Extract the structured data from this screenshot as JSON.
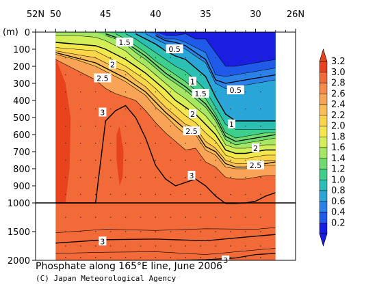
{
  "chart_data": {
    "type": "contour",
    "title": "Phosphate along 165°E line, June 2006",
    "credit": "(C) Japan Meteorological Agency",
    "y_unit_label": "(m)",
    "x_top_ticks": [
      "52N",
      "50",
      "45",
      "40",
      "35",
      "30",
      "26N"
    ],
    "x_top_values": [
      52,
      50,
      45,
      40,
      35,
      30,
      26
    ],
    "y_ticks_upper": [
      "0",
      "100",
      "200",
      "300",
      "400",
      "500",
      "600",
      "700",
      "800",
      "900",
      "1000"
    ],
    "y_ticks_lower": [
      "1500",
      "2000"
    ],
    "ylim": [
      0,
      2000
    ],
    "xlim_lat": [
      52,
      26
    ],
    "data_range_lat": [
      50,
      28
    ],
    "colorbar_levels": [
      "3.2",
      "3.0",
      "2.8",
      "2.6",
      "2.4",
      "2.2",
      "2.0",
      "1.8",
      "1.6",
      "1.4",
      "1.2",
      "1.0",
      "0.8",
      "0.6",
      "0.4",
      "0.2"
    ],
    "colorbar_values": [
      3.2,
      3.0,
      2.8,
      2.6,
      2.4,
      2.2,
      2.0,
      1.8,
      1.6,
      1.4,
      1.2,
      1.0,
      0.8,
      0.6,
      0.4,
      0.2
    ],
    "colorbar_colors": [
      "#e8431c",
      "#f16a38",
      "#f58a4a",
      "#f8a356",
      "#fbbd55",
      "#fbd54a",
      "#f3e84b",
      "#d3ee56",
      "#a5e662",
      "#6fdb6f",
      "#3ecf8c",
      "#2cc0b4",
      "#2aa5d8",
      "#2a82e8",
      "#1f5ae8",
      "#1a1ee0"
    ],
    "contour_labels": [
      {
        "value": "1.5",
        "lat": 43.1,
        "depth": 60
      },
      {
        "value": "0.5",
        "lat": 38.1,
        "depth": 100
      },
      {
        "value": "2",
        "lat": 44.3,
        "depth": 190
      },
      {
        "value": "2.5",
        "lat": 45.3,
        "depth": 270
      },
      {
        "value": "1",
        "lat": 36.3,
        "depth": 290
      },
      {
        "value": "1.5",
        "lat": 35.5,
        "depth": 360
      },
      {
        "value": "0.5",
        "lat": 32.0,
        "depth": 340
      },
      {
        "value": "3",
        "lat": 45.3,
        "depth": 470
      },
      {
        "value": "2",
        "lat": 36.3,
        "depth": 480
      },
      {
        "value": "1",
        "lat": 32.4,
        "depth": 540
      },
      {
        "value": "2.5",
        "lat": 36.4,
        "depth": 580
      },
      {
        "value": "2",
        "lat": 30.0,
        "depth": 680
      },
      {
        "value": "2.5",
        "lat": 30.0,
        "depth": 780
      },
      {
        "value": "3",
        "lat": 36.4,
        "depth": 840
      },
      {
        "value": "3",
        "lat": 45.3,
        "depth": 1670
      },
      {
        "value": "3",
        "lat": 33.0,
        "depth": 2000
      }
    ],
    "colors": {
      "deep_orange": "#f35b2b",
      "mid_orange": "#f16a38",
      "surface_blue": "#1a1ee0"
    }
  }
}
